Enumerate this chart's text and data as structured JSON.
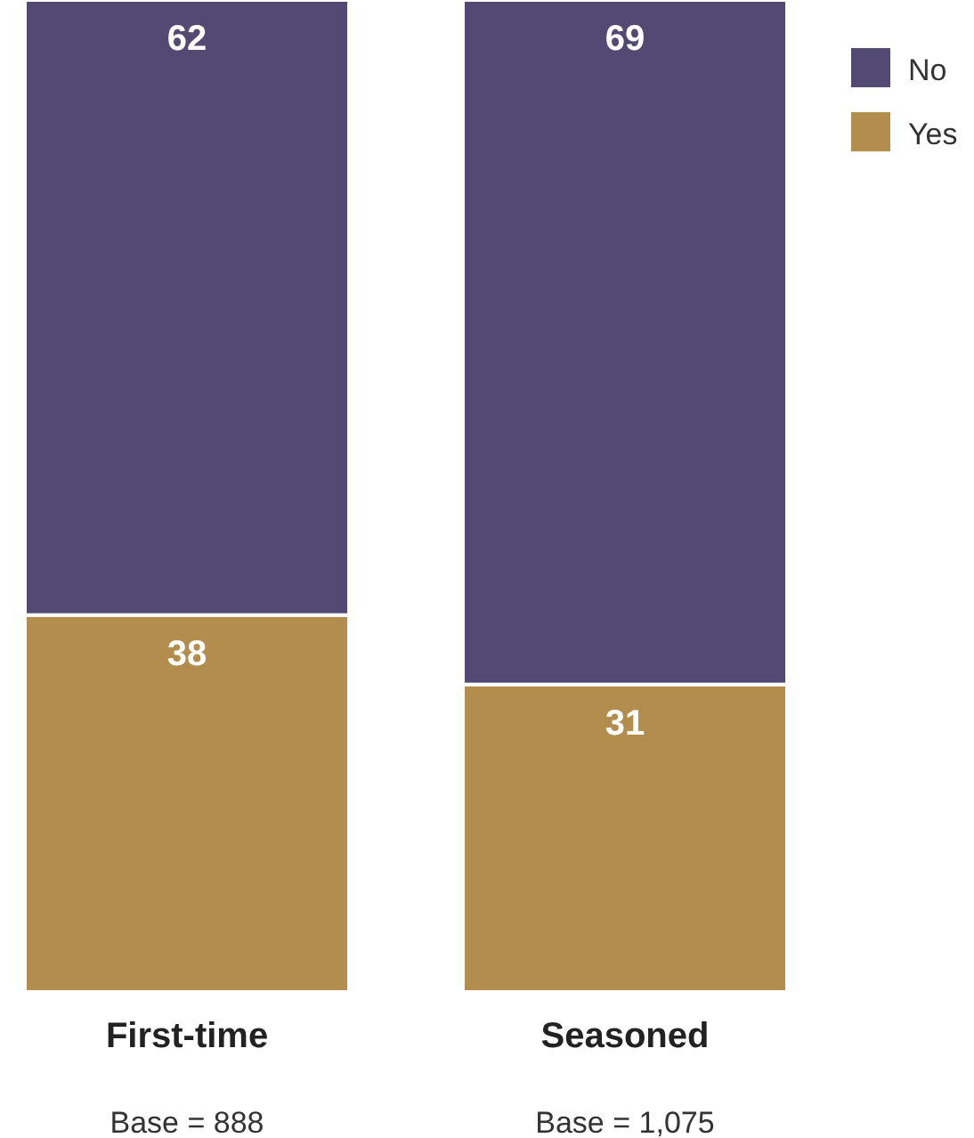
{
  "chart_data": {
    "type": "bar",
    "stacked": true,
    "categories": [
      "First-time",
      "Seasoned"
    ],
    "series": [
      {
        "name": "Yes",
        "color": "#b38d4e",
        "values": [
          38,
          31
        ]
      },
      {
        "name": "No",
        "color": "#524a72",
        "values": [
          62,
          69
        ]
      }
    ],
    "data_labels": true,
    "legend": "top right",
    "annotations": [
      "Base = 888",
      "Base = 1,075"
    ]
  }
}
